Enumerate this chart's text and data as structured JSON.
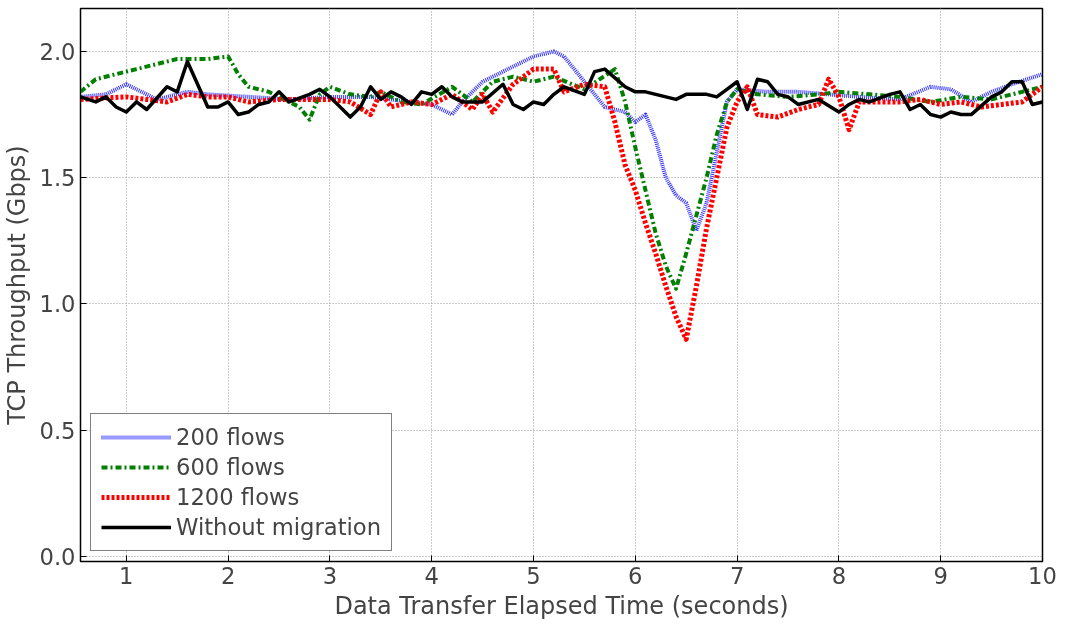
{
  "chart_data": {
    "type": "line",
    "xlabel": "Data Transfer Elapsed Time (seconds)",
    "ylabel": "TCP Throughput (Gbps)",
    "xlim": [
      0.55,
      10
    ],
    "ylim": [
      -0.02,
      2.17
    ],
    "xticks": [
      1,
      2,
      3,
      4,
      5,
      6,
      7,
      8,
      9,
      10
    ],
    "yticks": [
      {
        "value": 0,
        "label": "0.0"
      },
      0.5,
      {
        "value": 1,
        "label": "1.0"
      },
      1.5,
      {
        "value": 2,
        "label": "2.0"
      }
    ],
    "grid": true,
    "legend": "bottom left",
    "marker": "none",
    "series": [
      {
        "name": "200 flows",
        "color": "#3333ff",
        "line_style": "dotted",
        "x": [
          0.55,
          0.8,
          1.0,
          1.1,
          1.3,
          1.6,
          1.8,
          2.2,
          2.6,
          3.0,
          3.4,
          3.8,
          4.0,
          4.2,
          4.3,
          4.5,
          4.8,
          5.0,
          5.2,
          5.3,
          5.5,
          5.7,
          5.9,
          6.0,
          6.1,
          6.2,
          6.3,
          6.4,
          6.5,
          6.6,
          6.7,
          6.8,
          6.9,
          7.0,
          7.3,
          7.6,
          7.9,
          8.2,
          8.6,
          8.9,
          9.1,
          9.3,
          9.5,
          9.7,
          10.0
        ],
        "values": [
          1.82,
          1.83,
          1.87,
          1.85,
          1.81,
          1.84,
          1.83,
          1.82,
          1.81,
          1.82,
          1.82,
          1.8,
          1.79,
          1.75,
          1.8,
          1.88,
          1.94,
          1.98,
          2.0,
          1.98,
          1.88,
          1.78,
          1.76,
          1.72,
          1.75,
          1.65,
          1.5,
          1.43,
          1.4,
          1.29,
          1.4,
          1.6,
          1.8,
          1.85,
          1.84,
          1.84,
          1.83,
          1.82,
          1.81,
          1.86,
          1.85,
          1.8,
          1.84,
          1.87,
          1.91
        ]
      },
      {
        "name": "600 flows",
        "color": "#007f00",
        "line_style": "dashdot",
        "x": [
          0.55,
          0.7,
          0.9,
          1.1,
          1.3,
          1.5,
          1.8,
          2.0,
          2.1,
          2.2,
          2.4,
          2.6,
          2.7,
          2.8,
          2.9,
          3.0,
          3.2,
          3.4,
          3.5,
          3.7,
          3.9,
          4.2,
          4.4,
          4.6,
          4.8,
          5.0,
          5.2,
          5.5,
          5.8,
          5.9,
          6.0,
          6.1,
          6.2,
          6.3,
          6.4,
          6.5,
          6.6,
          6.7,
          6.8,
          6.9,
          7.0,
          7.2,
          7.5,
          7.8,
          8.0,
          8.3,
          8.6,
          8.9,
          9.2,
          9.5,
          9.8,
          10.0
        ],
        "values": [
          1.84,
          1.89,
          1.91,
          1.93,
          1.95,
          1.97,
          1.97,
          1.98,
          1.91,
          1.86,
          1.84,
          1.8,
          1.78,
          1.73,
          1.83,
          1.86,
          1.83,
          1.82,
          1.84,
          1.8,
          1.79,
          1.86,
          1.8,
          1.88,
          1.9,
          1.88,
          1.9,
          1.85,
          1.93,
          1.8,
          1.62,
          1.45,
          1.28,
          1.15,
          1.06,
          1.2,
          1.35,
          1.5,
          1.67,
          1.8,
          1.85,
          1.83,
          1.82,
          1.83,
          1.84,
          1.83,
          1.82,
          1.8,
          1.82,
          1.81,
          1.84,
          1.86
        ]
      },
      {
        "name": "1200 flows",
        "color": "#ff0000",
        "line_style": "dashed",
        "x": [
          0.55,
          1.0,
          1.2,
          1.4,
          1.6,
          1.8,
          2.0,
          2.2,
          2.5,
          2.8,
          3.0,
          3.2,
          3.4,
          3.5,
          3.6,
          3.8,
          4.0,
          4.2,
          4.4,
          4.5,
          4.6,
          4.8,
          5.0,
          5.2,
          5.3,
          5.5,
          5.7,
          5.8,
          5.9,
          6.0,
          6.1,
          6.2,
          6.3,
          6.4,
          6.5,
          6.6,
          6.7,
          6.8,
          6.9,
          7.0,
          7.1,
          7.2,
          7.4,
          7.6,
          7.8,
          7.9,
          8.0,
          8.1,
          8.2,
          8.4,
          8.6,
          8.8,
          9.0,
          9.2,
          9.4,
          9.6,
          9.8,
          10.0
        ],
        "values": [
          1.81,
          1.82,
          1.81,
          1.8,
          1.83,
          1.82,
          1.82,
          1.8,
          1.81,
          1.81,
          1.81,
          1.8,
          1.75,
          1.84,
          1.78,
          1.8,
          1.79,
          1.83,
          1.77,
          1.83,
          1.76,
          1.87,
          1.93,
          1.93,
          1.84,
          1.87,
          1.86,
          1.72,
          1.55,
          1.45,
          1.32,
          1.2,
          1.07,
          0.95,
          0.86,
          1.07,
          1.3,
          1.5,
          1.7,
          1.8,
          1.86,
          1.75,
          1.74,
          1.77,
          1.79,
          1.89,
          1.82,
          1.69,
          1.8,
          1.8,
          1.8,
          1.81,
          1.79,
          1.8,
          1.78,
          1.79,
          1.8,
          1.86
        ]
      },
      {
        "name": "Without migration",
        "color": "#000000",
        "line_style": "solid",
        "x": [
          0.55,
          0.7,
          0.8,
          0.9,
          1.0,
          1.1,
          1.2,
          1.4,
          1.5,
          1.6,
          1.8,
          1.9,
          2.0,
          2.1,
          2.2,
          2.3,
          2.4,
          2.5,
          2.6,
          2.8,
          2.9,
          3.0,
          3.2,
          3.3,
          3.4,
          3.5,
          3.6,
          3.7,
          3.8,
          3.9,
          4.0,
          4.1,
          4.2,
          4.3,
          4.5,
          4.7,
          4.8,
          4.9,
          5.0,
          5.1,
          5.2,
          5.3,
          5.5,
          5.6,
          5.7,
          5.9,
          6.0,
          6.1,
          6.3,
          6.4,
          6.5,
          6.7,
          6.8,
          6.9,
          7.0,
          7.1,
          7.2,
          7.3,
          7.4,
          7.5,
          7.6,
          7.8,
          8.0,
          8.1,
          8.2,
          8.3,
          8.5,
          8.6,
          8.7,
          8.8,
          8.9,
          9.0,
          9.1,
          9.2,
          9.3,
          9.5,
          9.6,
          9.7,
          9.8,
          9.9,
          10.0
        ],
        "values": [
          1.82,
          1.8,
          1.82,
          1.78,
          1.76,
          1.8,
          1.77,
          1.86,
          1.84,
          1.96,
          1.78,
          1.78,
          1.8,
          1.75,
          1.76,
          1.79,
          1.8,
          1.84,
          1.8,
          1.83,
          1.85,
          1.82,
          1.74,
          1.78,
          1.86,
          1.81,
          1.84,
          1.82,
          1.79,
          1.84,
          1.83,
          1.86,
          1.82,
          1.8,
          1.8,
          1.87,
          1.79,
          1.77,
          1.8,
          1.79,
          1.83,
          1.86,
          1.83,
          1.92,
          1.93,
          1.86,
          1.84,
          1.84,
          1.82,
          1.81,
          1.83,
          1.83,
          1.82,
          1.85,
          1.88,
          1.77,
          1.89,
          1.88,
          1.83,
          1.82,
          1.79,
          1.81,
          1.76,
          1.79,
          1.81,
          1.8,
          1.83,
          1.84,
          1.77,
          1.79,
          1.75,
          1.74,
          1.76,
          1.75,
          1.75,
          1.82,
          1.84,
          1.88,
          1.88,
          1.79,
          1.8
        ]
      }
    ]
  }
}
